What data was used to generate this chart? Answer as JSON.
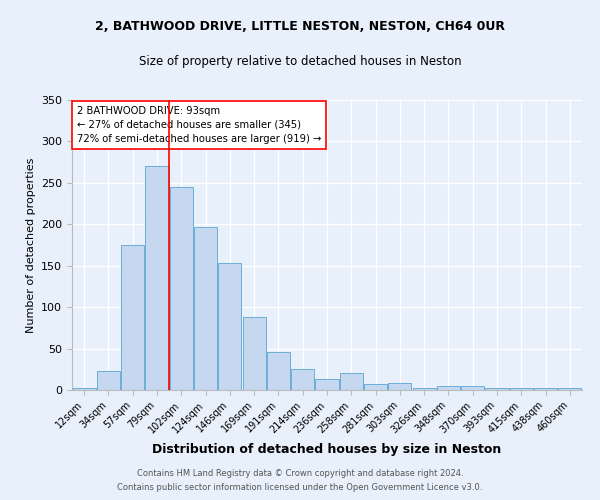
{
  "title1": "2, BATHWOOD DRIVE, LITTLE NESTON, NESTON, CH64 0UR",
  "title2": "Size of property relative to detached houses in Neston",
  "xlabel": "Distribution of detached houses by size in Neston",
  "ylabel": "Number of detached properties",
  "bar_labels": [
    "12sqm",
    "34sqm",
    "57sqm",
    "79sqm",
    "102sqm",
    "124sqm",
    "146sqm",
    "169sqm",
    "191sqm",
    "214sqm",
    "236sqm",
    "258sqm",
    "281sqm",
    "303sqm",
    "326sqm",
    "348sqm",
    "370sqm",
    "393sqm",
    "415sqm",
    "438sqm",
    "460sqm"
  ],
  "bar_heights": [
    2,
    23,
    175,
    270,
    245,
    197,
    153,
    88,
    46,
    25,
    13,
    20,
    7,
    8,
    3,
    5,
    5,
    2,
    2,
    2,
    2
  ],
  "bar_color": "#c5d8f0",
  "bar_edgecolor": "#6aaed6",
  "bg_color": "#e8f0fb",
  "grid_color": "#ffffff",
  "annotation_text": "2 BATHWOOD DRIVE: 93sqm\n← 27% of detached houses are smaller (345)\n72% of semi-detached houses are larger (919) →",
  "footer1": "Contains HM Land Registry data © Crown copyright and database right 2024.",
  "footer2": "Contains public sector information licensed under the Open Government Licence v3.0.",
  "ylim": [
    0,
    350
  ],
  "red_line_index": 3.61
}
